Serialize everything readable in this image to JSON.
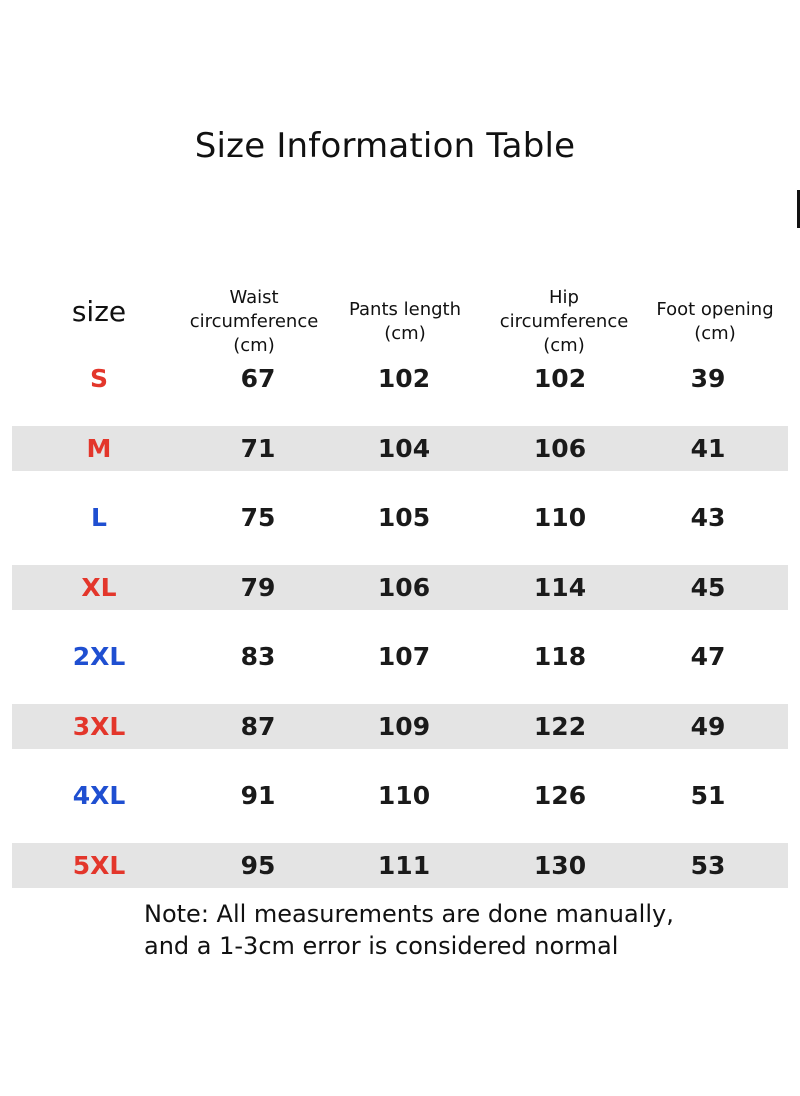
{
  "title": "Size Information Table",
  "colors": {
    "red": "#e3362b",
    "blue": "#1f4fd1",
    "row_shade": "#e4e4e4"
  },
  "headers": {
    "size": "size",
    "waist": "Waist circumference (cm)",
    "pants_length": "Pants length (cm)",
    "hip": "Hip circumference (cm)",
    "foot_opening": "Foot opening (cm)"
  },
  "rows": [
    {
      "size": "S",
      "size_color": "red",
      "waist": "67",
      "pants_length": "102",
      "hip": "102",
      "foot_opening": "39",
      "shaded": false
    },
    {
      "size": "M",
      "size_color": "red",
      "waist": "71",
      "pants_length": "104",
      "hip": "106",
      "foot_opening": "41",
      "shaded": true
    },
    {
      "size": "L",
      "size_color": "blue",
      "waist": "75",
      "pants_length": "105",
      "hip": "110",
      "foot_opening": "43",
      "shaded": false
    },
    {
      "size": "XL",
      "size_color": "red",
      "waist": "79",
      "pants_length": "106",
      "hip": "114",
      "foot_opening": "45",
      "shaded": true
    },
    {
      "size": "2XL",
      "size_color": "blue",
      "waist": "83",
      "pants_length": "107",
      "hip": "118",
      "foot_opening": "47",
      "shaded": false
    },
    {
      "size": "3XL",
      "size_color": "red",
      "waist": "87",
      "pants_length": "109",
      "hip": "122",
      "foot_opening": "49",
      "shaded": true
    },
    {
      "size": "4XL",
      "size_color": "blue",
      "waist": "91",
      "pants_length": "110",
      "hip": "126",
      "foot_opening": "51",
      "shaded": false
    },
    {
      "size": "5XL",
      "size_color": "red",
      "waist": "95",
      "pants_length": "111",
      "hip": "130",
      "foot_opening": "53",
      "shaded": true
    }
  ],
  "note": {
    "line1": "Note: All measurements are done manually,",
    "line2": "and a 1-3cm error is considered normal"
  }
}
